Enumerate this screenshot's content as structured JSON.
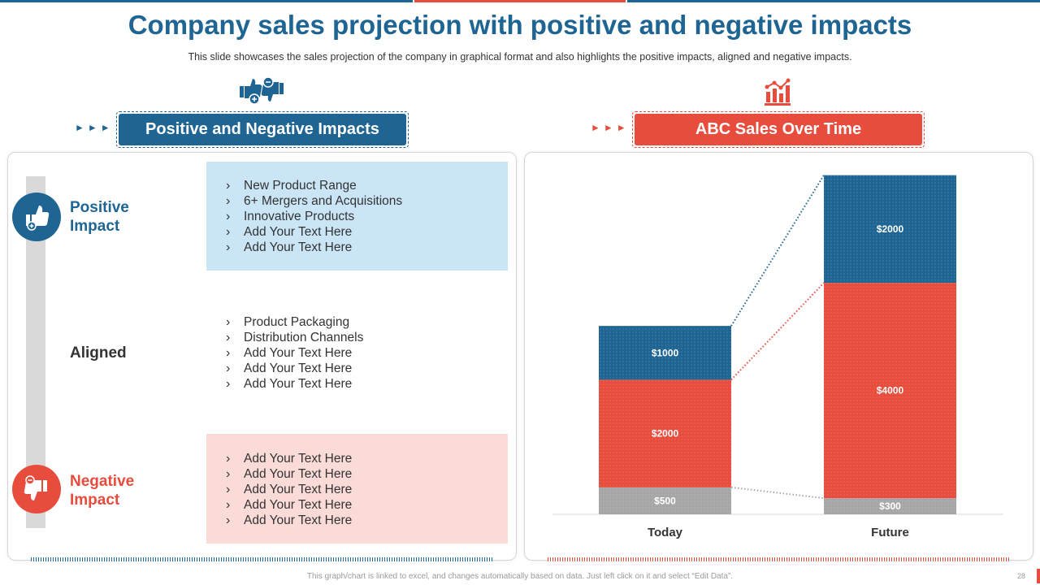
{
  "title": "Company sales projection with positive and negative impacts",
  "subtitle": "This slide showcases the sales projection of the company in graphical format and also highlights the positive impacts, aligned and negative impacts.",
  "left_panel": {
    "header": "Positive and Negative Impacts",
    "categories": [
      {
        "label_line1": "Positive",
        "label_line2": "Impact",
        "items": [
          "New Product Range",
          "6+ Mergers and Acquisitions",
          "Innovative Products",
          "Add Your Text Here",
          "Add Your Text Here"
        ]
      },
      {
        "label_line1": "Aligned",
        "label_line2": "",
        "items": [
          "Product Packaging",
          "Distribution Channels",
          "Add Your Text Here",
          "Add Your Text Here",
          "Add Your Text Here"
        ]
      },
      {
        "label_line1": "Negative",
        "label_line2": "Impact",
        "items": [
          "Add Your Text Here",
          "Add Your Text Here",
          "Add Your Text Here",
          "Add Your Text Here",
          "Add Your Text Here"
        ]
      }
    ]
  },
  "right_panel": {
    "header": "ABC Sales Over Time"
  },
  "chart_data": {
    "type": "bar",
    "stacked": true,
    "categories": [
      "Today",
      "Future"
    ],
    "series": [
      {
        "values": [
          500,
          300
        ],
        "labels": [
          "$500",
          "$300"
        ]
      },
      {
        "values": [
          2000,
          4000
        ],
        "labels": [
          "$2000",
          "$4000"
        ]
      },
      {
        "values": [
          1000,
          2000
        ],
        "labels": [
          "$1000",
          "$2000"
        ]
      }
    ],
    "connectors": "dotted lines between corresponding stack boundaries",
    "grid": false,
    "legend": "none"
  },
  "colors": {
    "blue": "#1F6593",
    "red": "#E84C3D",
    "gray": "#A6A6A6",
    "light_blue": "#CAE5F6",
    "light_red": "#FADBD7"
  },
  "icons": {
    "left_header": "thumbs-up-down-icon",
    "right_header": "bar-chart-icon",
    "positive": "thumbs-up-icon",
    "negative": "thumbs-down-icon"
  },
  "footer": "This graph/chart is linked to excel, and changes automatically based on data. Just left click on it and select “Edit Data”.",
  "page_number": "28"
}
